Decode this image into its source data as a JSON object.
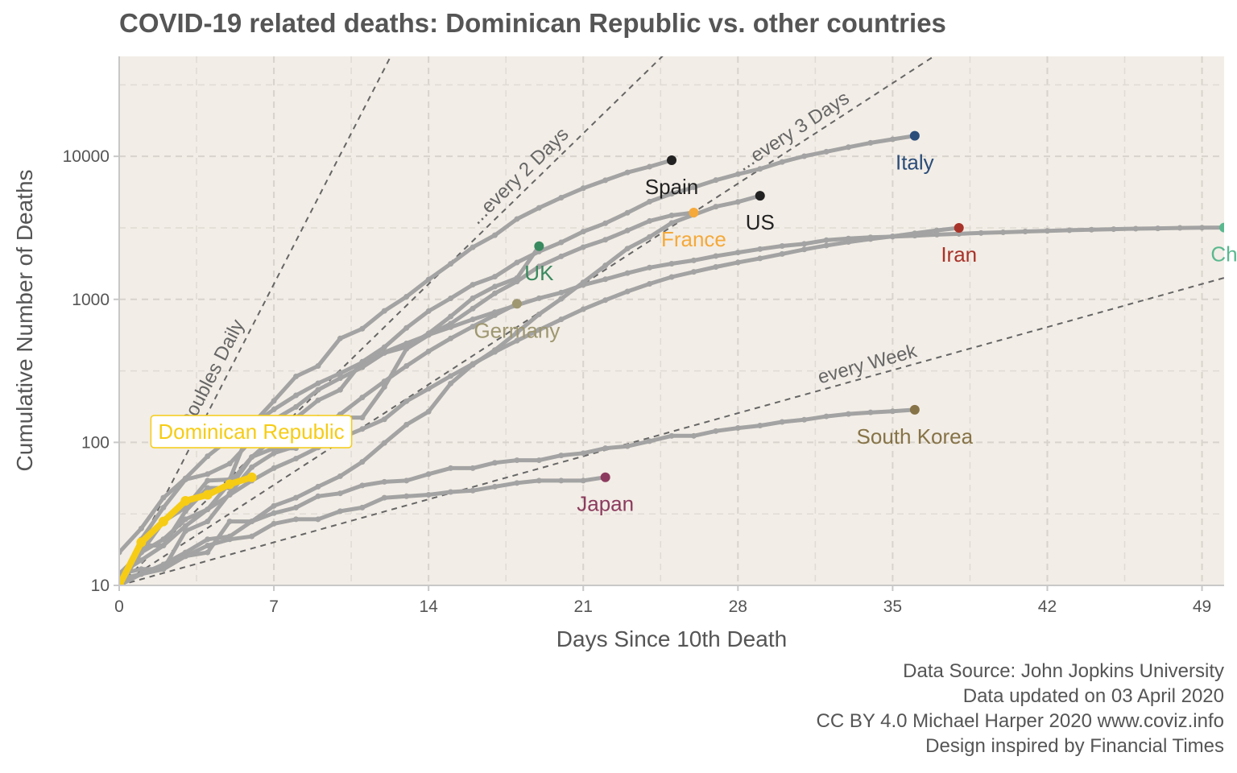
{
  "chart_data": {
    "type": "line",
    "title": "COVID-19 related deaths: Dominican Republic vs. other countries",
    "xlabel": "Days Since 10th Death",
    "ylabel": "Cumulative Number of Deaths",
    "xlim": [
      0,
      50
    ],
    "ylim": [
      10,
      50000
    ],
    "y_scale": "log",
    "x_ticks": [
      0,
      7,
      14,
      21,
      28,
      35,
      42,
      49
    ],
    "y_ticks": [
      10,
      100,
      1000,
      10000
    ],
    "grid": true,
    "background": "#f2ede6",
    "highlight": {
      "name": "Dominican Republic",
      "color": "#f6cc15",
      "label_box": true,
      "x": [
        0,
        1,
        2,
        3,
        4,
        5,
        6
      ],
      "y": [
        10,
        20,
        28,
        39,
        43,
        51,
        57
      ]
    },
    "series": [
      {
        "name": "Italy",
        "color": "#2b4d7a",
        "x": [
          0,
          1,
          2,
          3,
          4,
          5,
          6,
          7,
          8,
          9,
          10,
          11,
          12,
          13,
          14,
          15,
          16,
          17,
          18,
          19,
          20,
          21,
          22,
          23,
          24,
          25,
          26,
          27,
          28,
          29,
          30,
          31,
          32,
          33,
          34,
          35,
          36
        ],
        "y": [
          12,
          17,
          21,
          29,
          34,
          52,
          79,
          107,
          148,
          197,
          233,
          366,
          463,
          631,
          827,
          1016,
          1266,
          1441,
          1809,
          2158,
          2503,
          2978,
          3405,
          4032,
          4825,
          5476,
          6077,
          6820,
          7503,
          8165,
          9134,
          10023,
          10779,
          11591,
          12428,
          13155,
          13915
        ]
      },
      {
        "name": "Spain",
        "color": "#222222",
        "x": [
          0,
          1,
          2,
          3,
          4,
          5,
          6,
          7,
          8,
          9,
          10,
          11,
          12,
          13,
          14,
          15,
          16,
          17,
          18,
          19,
          20,
          21,
          22,
          23,
          24,
          25
        ],
        "y": [
          10,
          17,
          28,
          35,
          54,
          55,
          133,
          195,
          289,
          342,
          533,
          623,
          830,
          1043,
          1375,
          1772,
          2311,
          2808,
          3647,
          4365,
          5138,
          5982,
          6803,
          7716,
          8464,
          9387
        ]
      },
      {
        "name": "France",
        "color": "#f5a93a",
        "x": [
          0,
          1,
          2,
          3,
          4,
          5,
          6,
          7,
          8,
          9,
          10,
          11,
          12,
          13,
          14,
          15,
          16,
          17,
          18,
          19,
          20,
          21,
          22,
          23,
          24,
          25,
          26
        ],
        "y": [
          11,
          19,
          19,
          33,
          48,
          48,
          79,
          91,
          91,
          149,
          149,
          149,
          244,
          451,
          563,
          676,
          862,
          1102,
          1333,
          1698,
          1997,
          2317,
          2611,
          3030,
          3532,
          3862,
          4043
        ]
      },
      {
        "name": "US",
        "color": "#222222",
        "x": [
          0,
          1,
          2,
          3,
          4,
          5,
          6,
          7,
          8,
          9,
          10,
          11,
          12,
          13,
          14,
          15,
          16,
          17,
          18,
          19,
          20,
          21,
          22,
          23,
          24,
          25,
          26,
          27,
          28,
          29
        ],
        "y": [
          11,
          12,
          14,
          17,
          21,
          22,
          28,
          36,
          41,
          49,
          58,
          73,
          99,
          133,
          164,
          258,
          349,
          442,
          586,
          786,
          1008,
          1316,
          1726,
          2265,
          2731,
          3420,
          3900,
          4450,
          4800,
          5300
        ]
      },
      {
        "name": "UK",
        "color": "#3a8a5f",
        "x": [
          0,
          1,
          2,
          3,
          4,
          5,
          6,
          7,
          8,
          9,
          10,
          11,
          12,
          13,
          14,
          15,
          16,
          17,
          18,
          19
        ],
        "y": [
          10,
          21,
          35,
          55,
          60,
          71,
          104,
          144,
          177,
          233,
          281,
          335,
          422,
          465,
          578,
          759,
          1019,
          1228,
          1408,
          2352
        ]
      },
      {
        "name": "Germany",
        "color": "#9e9771",
        "x": [
          0,
          1,
          2,
          3,
          4,
          5,
          6,
          7,
          8,
          9,
          10,
          11,
          12,
          13,
          14,
          15,
          16,
          17,
          18
        ],
        "y": [
          12,
          13,
          13,
          24,
          28,
          44,
          67,
          84,
          94,
          123,
          157,
          206,
          267,
          342,
          433,
          533,
          645,
          775,
          931
        ]
      },
      {
        "name": "Iran",
        "color": "#a8332a",
        "x": [
          0,
          1,
          2,
          3,
          4,
          5,
          6,
          7,
          8,
          9,
          10,
          11,
          12,
          13,
          14,
          15,
          16,
          17,
          18,
          19,
          20,
          21,
          22,
          23,
          24,
          25,
          26,
          27,
          28,
          29,
          30,
          31,
          32,
          33,
          34,
          35,
          36,
          37,
          38
        ],
        "y": [
          12,
          15,
          19,
          26,
          34,
          43,
          54,
          66,
          77,
          92,
          107,
          124,
          145,
          194,
          237,
          291,
          354,
          429,
          514,
          611,
          724,
          853,
          988,
          1135,
          1284,
          1433,
          1556,
          1685,
          1812,
          1934,
          2077,
          2234,
          2378,
          2517,
          2640,
          2757,
          2898,
          3036,
          3160
        ]
      },
      {
        "name": "China",
        "color": "#5ab88f",
        "x": [
          0,
          1,
          2,
          3,
          4,
          5,
          6,
          7,
          8,
          9,
          10,
          11,
          12,
          13,
          14,
          15,
          16,
          17,
          18,
          19,
          20,
          21,
          22,
          23,
          24,
          25,
          26,
          27,
          28,
          29,
          30,
          31,
          32,
          33,
          34,
          35,
          36,
          37,
          38,
          39,
          40,
          41,
          42,
          43,
          44,
          45,
          46,
          47,
          48,
          49,
          50
        ],
        "y": [
          17,
          25,
          41,
          56,
          80,
          106,
          132,
          170,
          213,
          259,
          304,
          362,
          426,
          492,
          565,
          638,
          724,
          813,
          910,
          1018,
          1115,
          1261,
          1383,
          1526,
          1669,
          1775,
          1873,
          2009,
          2126,
          2247,
          2360,
          2442,
          2592,
          2663,
          2715,
          2744,
          2788,
          2835,
          2870,
          2912,
          2943,
          2981,
          3012,
          3042,
          3070,
          3097,
          3119,
          3136,
          3158,
          3169,
          3176
        ]
      },
      {
        "name": "South Korea",
        "color": "#867347",
        "x": [
          0,
          1,
          2,
          3,
          4,
          5,
          6,
          7,
          8,
          9,
          10,
          11,
          12,
          13,
          14,
          15,
          16,
          17,
          18,
          19,
          20,
          21,
          22,
          23,
          24,
          25,
          26,
          27,
          28,
          29,
          30,
          31,
          32,
          33,
          34,
          35,
          36
        ],
        "y": [
          11,
          12,
          13,
          16,
          17,
          28,
          28,
          32,
          35,
          42,
          44,
          50,
          53,
          54,
          60,
          66,
          66,
          72,
          75,
          75,
          81,
          84,
          91,
          94,
          102,
          111,
          111,
          120,
          126,
          131,
          139,
          144,
          152,
          158,
          162,
          165,
          169
        ]
      },
      {
        "name": "Japan",
        "color": "#8c3b5e",
        "x": [
          0,
          1,
          2,
          3,
          4,
          5,
          6,
          7,
          8,
          9,
          10,
          11,
          12,
          13,
          14,
          15,
          16,
          17,
          18,
          19,
          20,
          21,
          22
        ],
        "y": [
          10,
          12,
          13,
          16,
          19,
          21,
          22,
          27,
          29,
          29,
          33,
          35,
          41,
          42,
          43,
          45,
          46,
          49,
          52,
          54,
          54,
          54,
          57
        ]
      }
    ],
    "label_positions": {
      "Italy": "below",
      "Spain": "below",
      "France": "below",
      "US": "below",
      "UK": "below",
      "Germany": "below",
      "Iran": "below",
      "China": "below",
      "South Korea": "below",
      "Japan": "below"
    },
    "point_labels": {
      "Italy": "Italy",
      "Spain": "Spain",
      "France": "France",
      "US": "US",
      "UK": "UK",
      "Germany": "Germany",
      "Iran": "Iran",
      "China": "Ch",
      "South Korea": "South Korea",
      "Japan": "Japan"
    },
    "reference_lines": [
      {
        "label": "Doubles Daily",
        "doubling_days": 1
      },
      {
        "label": "...every 2 Days",
        "doubling_days": 2
      },
      {
        "label": "...every 3 Days",
        "doubling_days": 3
      },
      {
        "label": "every  Week",
        "doubling_days": 7
      }
    ]
  },
  "caption": [
    "Data Source: John Jopkins University",
    "Data updated on 03 April 2020",
    "CC BY 4.0 Michael Harper 2020 www.coviz.info",
    "Design inspired by Financial Times"
  ]
}
